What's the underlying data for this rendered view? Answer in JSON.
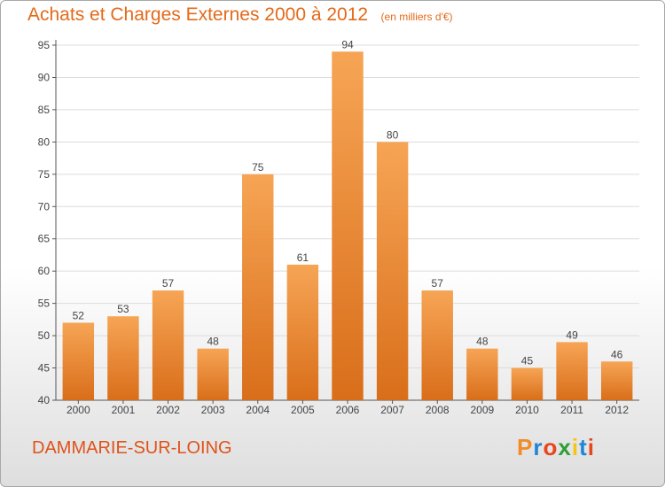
{
  "header": {
    "title": "Achats et Charges Externes 2000 à 2012",
    "unit": "(en milliers d'€)"
  },
  "footer": {
    "commune": "DAMMARIE-SUR-LOING",
    "logo_text": "Proxiti",
    "logo_letter_colors": [
      "#f28c28",
      "#1f86d6",
      "#e8461f",
      "#2e9f36",
      "#f7c315",
      "#1f86d6",
      "#e8461f"
    ]
  },
  "colors": {
    "title": "#e36a1a",
    "bar_light": "#f6a555",
    "bar_dark": "#d96e1a",
    "grid": "#dcdcdc",
    "axis": "#555555"
  },
  "chart_data": {
    "type": "bar",
    "title": "Achats et Charges Externes 2000 à 2012",
    "subtitle": "(en milliers d'€)",
    "categories": [
      "2000",
      "2001",
      "2002",
      "2003",
      "2004",
      "2005",
      "2006",
      "2007",
      "2008",
      "2009",
      "2010",
      "2011",
      "2012"
    ],
    "values": [
      52,
      53,
      57,
      48,
      75,
      61,
      94,
      80,
      57,
      48,
      45,
      49,
      46
    ],
    "ylim": [
      40,
      95
    ],
    "yticks": [
      40,
      45,
      50,
      55,
      60,
      65,
      70,
      75,
      80,
      85,
      90,
      95
    ],
    "grid": true,
    "xlabel": "",
    "ylabel": ""
  }
}
